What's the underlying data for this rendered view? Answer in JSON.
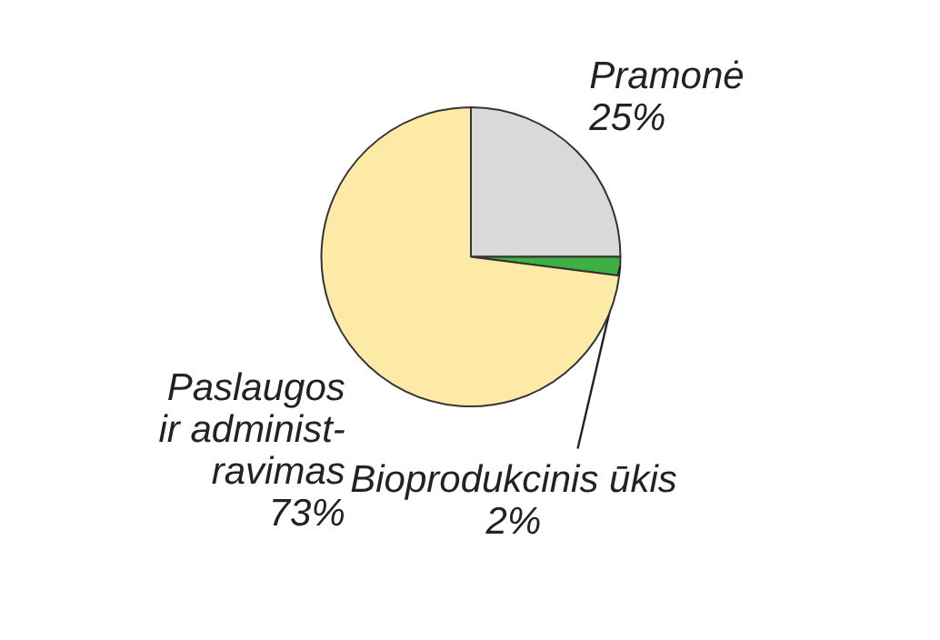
{
  "chart_data": {
    "type": "pie",
    "categories": [
      "Pramonė",
      "Bioprodukcinis ūkis",
      "Paslaugos\nir administ-\nravimas"
    ],
    "values": [
      25,
      2,
      73
    ],
    "colors": [
      "#d9d9d9",
      "#3cb043",
      "#fdeaa6"
    ],
    "value_labels": [
      "25%",
      "2%",
      "73%"
    ]
  }
}
